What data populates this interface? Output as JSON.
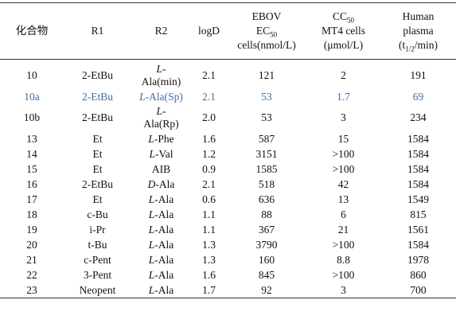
{
  "header": {
    "columns": [
      {
        "lines": [
          [
            {
              "text": "化合物"
            }
          ]
        ]
      },
      {
        "lines": [
          [
            {
              "text": "R1"
            }
          ]
        ]
      },
      {
        "lines": [
          [
            {
              "text": "R2"
            }
          ]
        ]
      },
      {
        "lines": [
          [
            {
              "text": "logD"
            }
          ]
        ]
      },
      {
        "lines": [
          [
            {
              "text": "EBOV"
            }
          ],
          [
            {
              "text": "EC"
            },
            {
              "text": "50",
              "sub": true
            }
          ],
          [
            {
              "text": "cells(nmol/L)"
            }
          ]
        ]
      },
      {
        "lines": [
          [
            {
              "text": "CC"
            },
            {
              "text": "50",
              "sub": true
            }
          ],
          [
            {
              "text": "MT4 cells"
            }
          ],
          [
            {
              "text": "(μmol/L)"
            }
          ]
        ]
      },
      {
        "lines": [
          [
            {
              "text": "Human"
            }
          ],
          [
            {
              "text": "plasma"
            }
          ],
          [
            {
              "text": "(t"
            },
            {
              "text": "1/2",
              "sub": true
            },
            {
              "text": "/min)"
            }
          ]
        ]
      }
    ]
  },
  "table": {
    "rows": [
      {
        "compound": "10",
        "r1": "2-EtBu",
        "r2": [
          [
            {
              "text": "L",
              "italic": true
            },
            {
              "text": "-"
            }
          ],
          [
            {
              "text": "Ala(min)"
            }
          ]
        ],
        "logd": "2.1",
        "ec50": "121",
        "cc50": "2",
        "t_half": "191"
      },
      {
        "compound": "10a",
        "r1": "2-EtBu",
        "r2": [
          [
            {
              "text": "L",
              "italic": true
            },
            {
              "text": "-Ala(Sp)"
            }
          ]
        ],
        "logd": "2.1",
        "ec50": "53",
        "cc50": "1.7",
        "t_half": "69",
        "color": "#3f6f9e"
      },
      {
        "compound": "10b",
        "r1": "2-EtBu",
        "r2": [
          [
            {
              "text": "L",
              "italic": true
            },
            {
              "text": "-"
            }
          ],
          [
            {
              "text": "Ala(Rp)"
            }
          ]
        ],
        "logd": "2.0",
        "ec50": "53",
        "cc50": "3",
        "t_half": "234"
      },
      {
        "compound": "13",
        "r1": "Et",
        "r2": [
          [
            {
              "text": "L",
              "italic": true
            },
            {
              "text": "-Phe"
            }
          ]
        ],
        "logd": "1.6",
        "ec50": "587",
        "cc50": "15",
        "t_half": "1584"
      },
      {
        "compound": "14",
        "r1": "Et",
        "r2": [
          [
            {
              "text": "L",
              "italic": true
            },
            {
              "text": "-Val"
            }
          ]
        ],
        "logd": "1.2",
        "ec50": "3151",
        "cc50": ">100",
        "t_half": "1584"
      },
      {
        "compound": "15",
        "r1": "Et",
        "r2": [
          [
            {
              "text": "AIB"
            }
          ]
        ],
        "logd": "0.9",
        "ec50": "1585",
        "cc50": ">100",
        "t_half": "1584"
      },
      {
        "compound": "16",
        "r1": "2-EtBu",
        "r2": [
          [
            {
              "text": "D",
              "italic": true
            },
            {
              "text": "-Ala"
            }
          ]
        ],
        "logd": "2.1",
        "ec50": "518",
        "cc50": "42",
        "t_half": "1584"
      },
      {
        "compound": "17",
        "r1": "Et",
        "r2": [
          [
            {
              "text": "L",
              "italic": true
            },
            {
              "text": "-Ala"
            }
          ]
        ],
        "logd": "0.6",
        "ec50": "636",
        "cc50": "13",
        "t_half": "1549"
      },
      {
        "compound": "18",
        "r1": "c-Bu",
        "r2": [
          [
            {
              "text": "L",
              "italic": true
            },
            {
              "text": "-Ala"
            }
          ]
        ],
        "logd": "1.1",
        "ec50": "88",
        "cc50": "6",
        "t_half": "815"
      },
      {
        "compound": "19",
        "r1": "i-Pr",
        "r2": [
          [
            {
              "text": "L",
              "italic": true
            },
            {
              "text": "-Ala"
            }
          ]
        ],
        "logd": "1.1",
        "ec50": "367",
        "cc50": "21",
        "t_half": "1561"
      },
      {
        "compound": "20",
        "r1": "t-Bu",
        "r2": [
          [
            {
              "text": "L",
              "italic": true
            },
            {
              "text": "-Ala"
            }
          ]
        ],
        "logd": "1.3",
        "ec50": "3790",
        "cc50": ">100",
        "t_half": "1584"
      },
      {
        "compound": "21",
        "r1": "c-Pent",
        "r2": [
          [
            {
              "text": "L",
              "italic": true
            },
            {
              "text": "-Ala"
            }
          ]
        ],
        "logd": "1.3",
        "ec50": "160",
        "cc50": "8.8",
        "t_half": "1978"
      },
      {
        "compound": "22",
        "r1": "3-Pent",
        "r2": [
          [
            {
              "text": "L",
              "italic": true
            },
            {
              "text": "-Ala"
            }
          ]
        ],
        "logd": "1.6",
        "ec50": "845",
        "cc50": ">100",
        "t_half": "860"
      },
      {
        "compound": "23",
        "r1": "Neopent",
        "r2": [
          [
            {
              "text": "L",
              "italic": true
            },
            {
              "text": "-Ala"
            }
          ]
        ],
        "logd": "1.7",
        "ec50": "92",
        "cc50": "3",
        "t_half": "700"
      }
    ]
  }
}
